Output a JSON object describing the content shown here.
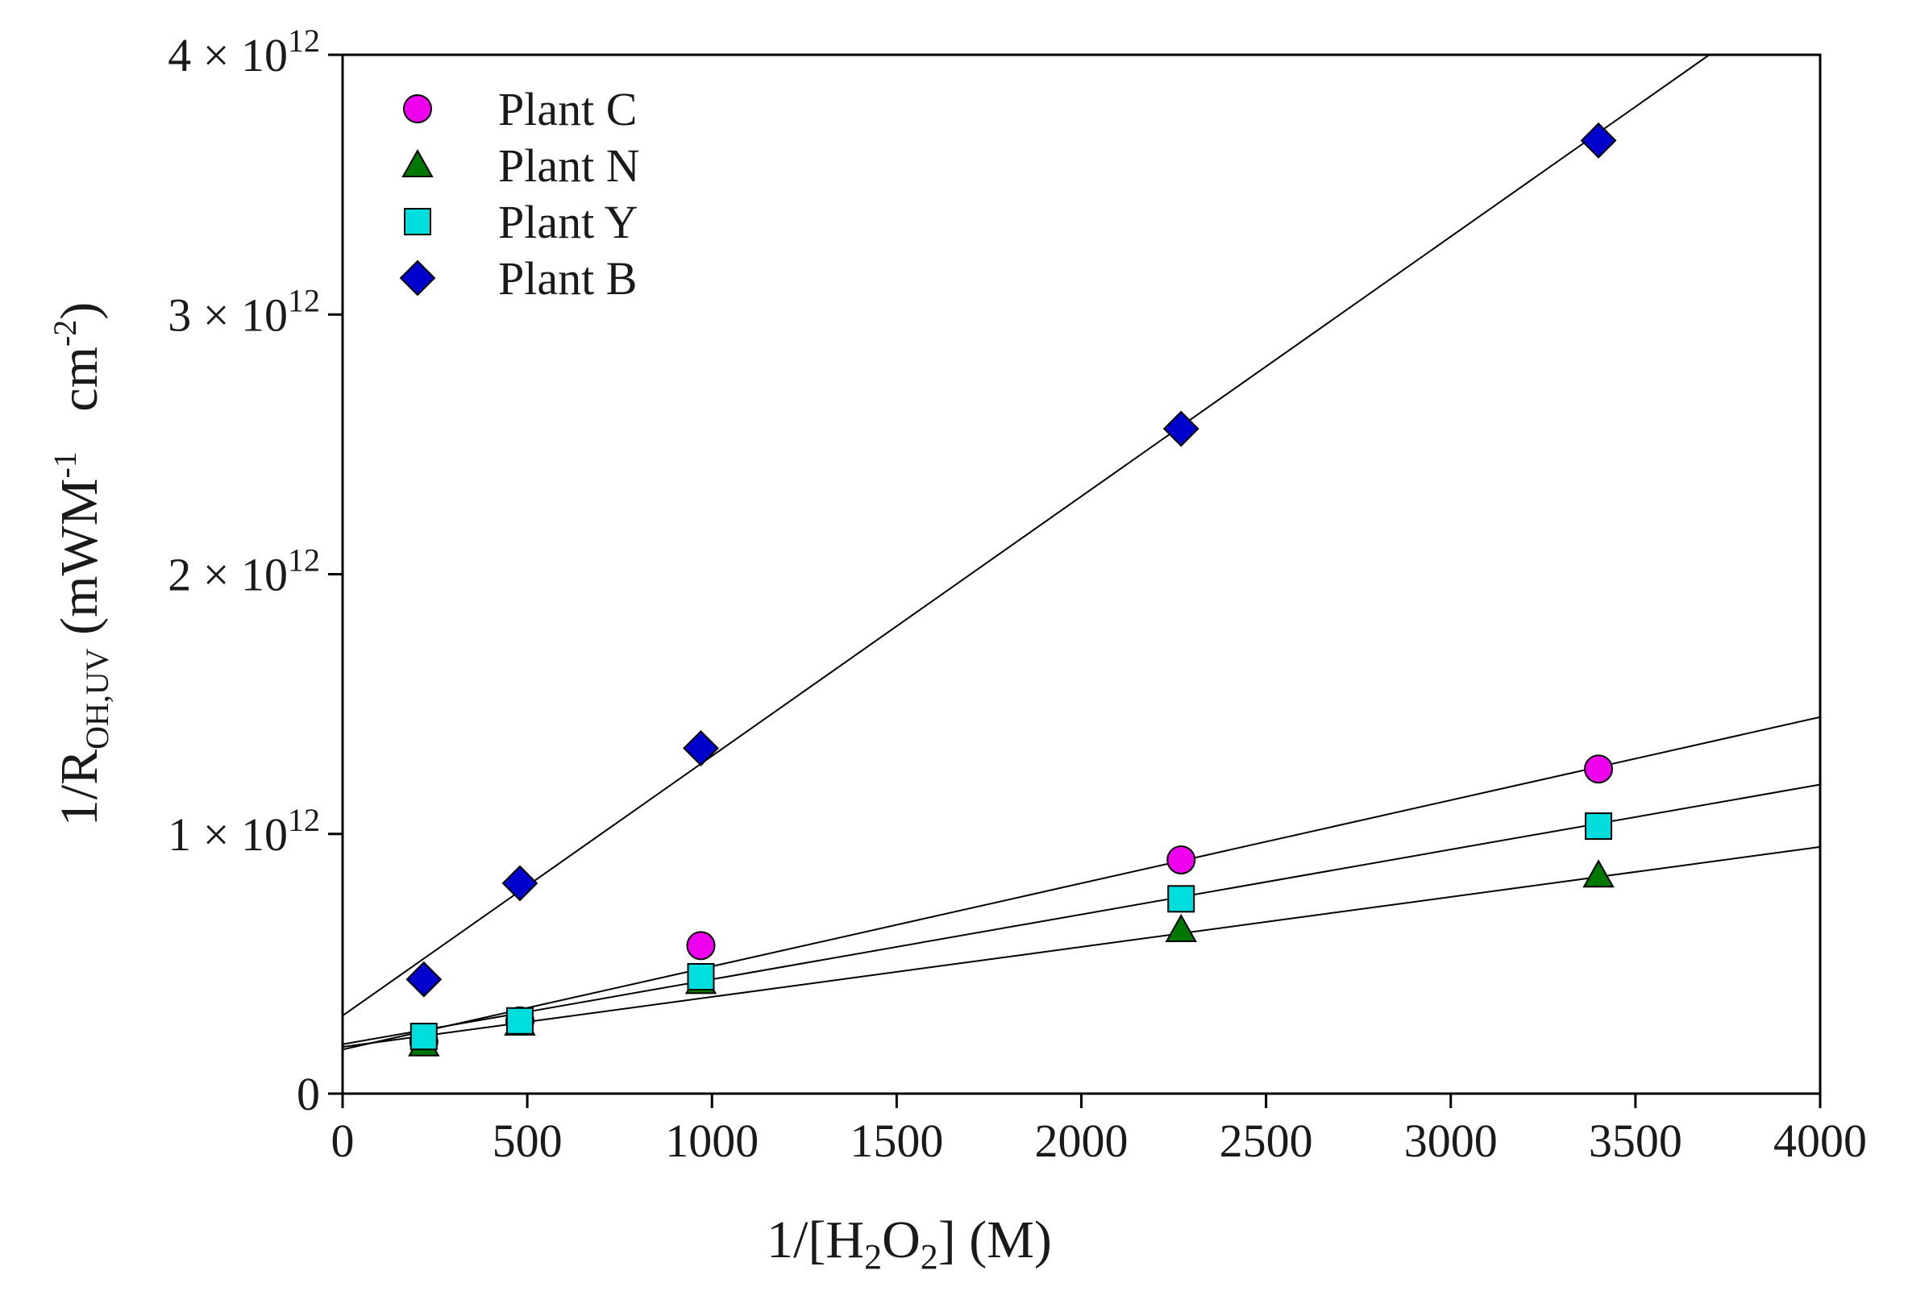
{
  "chart_data": {
    "type": "scatter",
    "title": "",
    "xlabel": {
      "prefix": "1/[H",
      "sub1": "2",
      "mid": "O",
      "sub2": "2",
      "suffix": "] (M)"
    },
    "ylabel": {
      "prefix": "1/R",
      "sub": "OH,UV",
      "mid": " (mWM",
      "sup1": "-1",
      "gap": "   cm",
      "sup2": "-2",
      "suffix": ")"
    },
    "xlim": [
      0,
      4000
    ],
    "ylim": [
      0,
      4000000000000.0
    ],
    "x_ticks": [
      {
        "value": 0,
        "label": "0"
      },
      {
        "value": 500,
        "label": "500"
      },
      {
        "value": 1000,
        "label": "1000"
      },
      {
        "value": 1500,
        "label": "1500"
      },
      {
        "value": 2000,
        "label": "2000"
      },
      {
        "value": 2500,
        "label": "2500"
      },
      {
        "value": 3000,
        "label": "3000"
      },
      {
        "value": 3500,
        "label": "3500"
      },
      {
        "value": 4000,
        "label": "4000"
      }
    ],
    "y_ticks": [
      {
        "value": 0,
        "label": "0",
        "exp": ""
      },
      {
        "value": 1000000000000.0,
        "label": "1 × 10",
        "exp": "12"
      },
      {
        "value": 2000000000000.0,
        "label": "2 × 10",
        "exp": "12"
      },
      {
        "value": 3000000000000.0,
        "label": "3 × 10",
        "exp": "12"
      },
      {
        "value": 4000000000000.0,
        "label": "4 × 10",
        "exp": "12"
      }
    ],
    "legend_position": "top-left",
    "series": [
      {
        "name": "Plant C",
        "marker": "circle",
        "color": "#ee00ee",
        "x": [
          220,
          480,
          970,
          2270,
          3400
        ],
        "y": [
          200000000000.0,
          280000000000.0,
          570000000000.0,
          900000000000.0,
          1250000000000.0
        ],
        "fit": {
          "x": [
            0,
            4000
          ],
          "y": [
            170000000000.0,
            1450000000000.0
          ]
        }
      },
      {
        "name": "Plant N",
        "marker": "triangle",
        "color": "#007700",
        "x": [
          220,
          480,
          970,
          2270,
          3400
        ],
        "y": [
          190000000000.0,
          270000000000.0,
          430000000000.0,
          630000000000.0,
          840000000000.0
        ],
        "fit": {
          "x": [
            0,
            4000
          ],
          "y": [
            180000000000.0,
            950000000000.0
          ]
        }
      },
      {
        "name": "Plant Y",
        "marker": "square",
        "color": "#00dddd",
        "x": [
          220,
          480,
          970,
          2270,
          3400
        ],
        "y": [
          220000000000.0,
          280000000000.0,
          450000000000.0,
          750000000000.0,
          1030000000000.0
        ],
        "fit": {
          "x": [
            0,
            4000
          ],
          "y": [
            190000000000.0,
            1190000000000.0
          ]
        }
      },
      {
        "name": "Plant B",
        "marker": "diamond",
        "color": "#0000cc",
        "x": [
          220,
          480,
          970,
          2270,
          3400
        ],
        "y": [
          440000000000.0,
          810000000000.0,
          1330000000000.0,
          2560000000000.0,
          3670000000000.0
        ],
        "fit": {
          "x": [
            0,
            3700
          ],
          "y": [
            300000000000.0,
            4000000000000.0
          ]
        }
      }
    ]
  }
}
